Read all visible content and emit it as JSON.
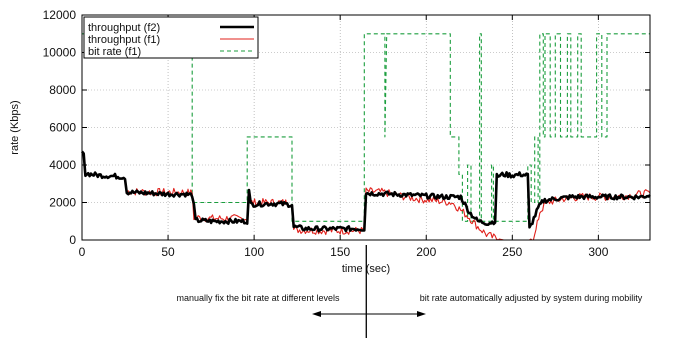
{
  "chart_data": {
    "type": "line",
    "xlabel": "time (sec)",
    "ylabel": "rate (Kbps)",
    "xlim": [
      0,
      330
    ],
    "ylim": [
      0,
      12000
    ],
    "xticks": [
      0,
      50,
      100,
      150,
      200,
      250,
      300
    ],
    "yticks": [
      0,
      2000,
      4000,
      6000,
      8000,
      10000,
      12000
    ],
    "grid": true,
    "legend_placement": "top-left",
    "series": [
      {
        "name": "throughput (f2)",
        "color": "#000000",
        "style": "solid-thick",
        "points": [
          [
            0,
            4700
          ],
          [
            1,
            4500
          ],
          [
            2,
            3550
          ],
          [
            10,
            3450
          ],
          [
            20,
            3400
          ],
          [
            25,
            3350
          ],
          [
            26,
            2550
          ],
          [
            40,
            2500
          ],
          [
            50,
            2450
          ],
          [
            60,
            2450
          ],
          [
            64,
            2400
          ],
          [
            65,
            1800
          ],
          [
            66,
            1050
          ],
          [
            75,
            1000
          ],
          [
            90,
            1000
          ],
          [
            96,
            1000
          ],
          [
            97,
            2600
          ],
          [
            98,
            1900
          ],
          [
            110,
            1950
          ],
          [
            120,
            1900
          ],
          [
            122,
            1900
          ],
          [
            123,
            700
          ],
          [
            130,
            600
          ],
          [
            150,
            600
          ],
          [
            160,
            600
          ],
          [
            164,
            600
          ],
          [
            165,
            2500
          ],
          [
            180,
            2450
          ],
          [
            190,
            2400
          ],
          [
            200,
            2350
          ],
          [
            210,
            2300
          ],
          [
            220,
            2300
          ],
          [
            225,
            1500
          ],
          [
            230,
            1000
          ],
          [
            236,
            900
          ],
          [
            240,
            1000
          ],
          [
            241,
            3400
          ],
          [
            245,
            3500
          ],
          [
            250,
            3450
          ],
          [
            255,
            3500
          ],
          [
            259,
            3450
          ],
          [
            260,
            600
          ],
          [
            265,
            1700
          ],
          [
            268,
            2100
          ],
          [
            275,
            2200
          ],
          [
            285,
            2300
          ],
          [
            295,
            2300
          ],
          [
            305,
            2300
          ],
          [
            315,
            2300
          ],
          [
            325,
            2300
          ],
          [
            330,
            2400
          ]
        ]
      },
      {
        "name": "throughput (f1)",
        "color": "#e0201b",
        "style": "solid",
        "points": [
          [
            26,
            2600
          ],
          [
            40,
            2550
          ],
          [
            50,
            2550
          ],
          [
            60,
            2550
          ],
          [
            64,
            2500
          ],
          [
            65,
            1200
          ],
          [
            75,
            1150
          ],
          [
            90,
            1150
          ],
          [
            96,
            1150
          ],
          [
            97,
            2000
          ],
          [
            110,
            2000
          ],
          [
            120,
            2000
          ],
          [
            122,
            1950
          ],
          [
            123,
            550
          ],
          [
            140,
            500
          ],
          [
            150,
            500
          ],
          [
            164,
            500
          ],
          [
            165,
            2600
          ],
          [
            175,
            2550
          ],
          [
            185,
            2350
          ],
          [
            195,
            2200
          ],
          [
            205,
            2100
          ],
          [
            215,
            2000
          ],
          [
            220,
            1600
          ],
          [
            225,
            1200
          ],
          [
            230,
            700
          ],
          [
            235,
            300
          ],
          [
            240,
            100
          ],
          [
            245,
            0
          ],
          [
            250,
            0
          ],
          [
            255,
            0
          ],
          [
            260,
            0
          ],
          [
            263,
            200
          ],
          [
            266,
            1500
          ],
          [
            270,
            2000
          ],
          [
            280,
            2200
          ],
          [
            290,
            2300
          ],
          [
            300,
            2300
          ],
          [
            310,
            2300
          ],
          [
            320,
            2400
          ],
          [
            330,
            2500
          ]
        ]
      },
      {
        "name": "bit rate (f1)",
        "color": "#1b9e3e",
        "style": "dashed",
        "points": [
          [
            0,
            11000
          ],
          [
            64,
            11000
          ],
          [
            64,
            2000
          ],
          [
            96,
            2000
          ],
          [
            96,
            5500
          ],
          [
            122,
            5500
          ],
          [
            122,
            1000
          ],
          [
            164,
            1000
          ],
          [
            164,
            11000
          ],
          [
            176,
            11000
          ],
          [
            176,
            5500
          ],
          [
            177,
            11000
          ],
          [
            214,
            11000
          ],
          [
            214,
            5500
          ],
          [
            219,
            5500
          ],
          [
            219,
            3500
          ],
          [
            221,
            3500
          ],
          [
            221,
            1000
          ],
          [
            224,
            1000
          ],
          [
            224,
            4000
          ],
          [
            226,
            4000
          ],
          [
            226,
            1000
          ],
          [
            231,
            1000
          ],
          [
            231,
            11000
          ],
          [
            232,
            11000
          ],
          [
            232,
            1000
          ],
          [
            238,
            1000
          ],
          [
            238,
            4000
          ],
          [
            239,
            4000
          ],
          [
            239,
            1000
          ],
          [
            259,
            1000
          ],
          [
            259,
            4000
          ],
          [
            261,
            4000
          ],
          [
            261,
            2000
          ],
          [
            263,
            2000
          ],
          [
            263,
            5500
          ],
          [
            265,
            5500
          ],
          [
            265,
            2000
          ],
          [
            266,
            2000
          ],
          [
            266,
            11000
          ],
          [
            268,
            11000
          ],
          [
            268,
            5500
          ],
          [
            269,
            5500
          ],
          [
            269,
            11000
          ],
          [
            272,
            11000
          ],
          [
            272,
            5500
          ],
          [
            275,
            5500
          ],
          [
            275,
            11000
          ],
          [
            278,
            11000
          ],
          [
            278,
            5500
          ],
          [
            282,
            5500
          ],
          [
            282,
            11000
          ],
          [
            284,
            11000
          ],
          [
            284,
            5500
          ],
          [
            288,
            5500
          ],
          [
            288,
            11000
          ],
          [
            290,
            11000
          ],
          [
            290,
            5500
          ],
          [
            299,
            5500
          ],
          [
            299,
            11000
          ],
          [
            302,
            11000
          ],
          [
            302,
            5500
          ],
          [
            305,
            5500
          ],
          [
            305,
            11000
          ],
          [
            330,
            11000
          ]
        ]
      }
    ],
    "annotations": [
      "manually fix the bit rate at different levels",
      "bit rate automatically adjusted by system during mobility"
    ]
  }
}
